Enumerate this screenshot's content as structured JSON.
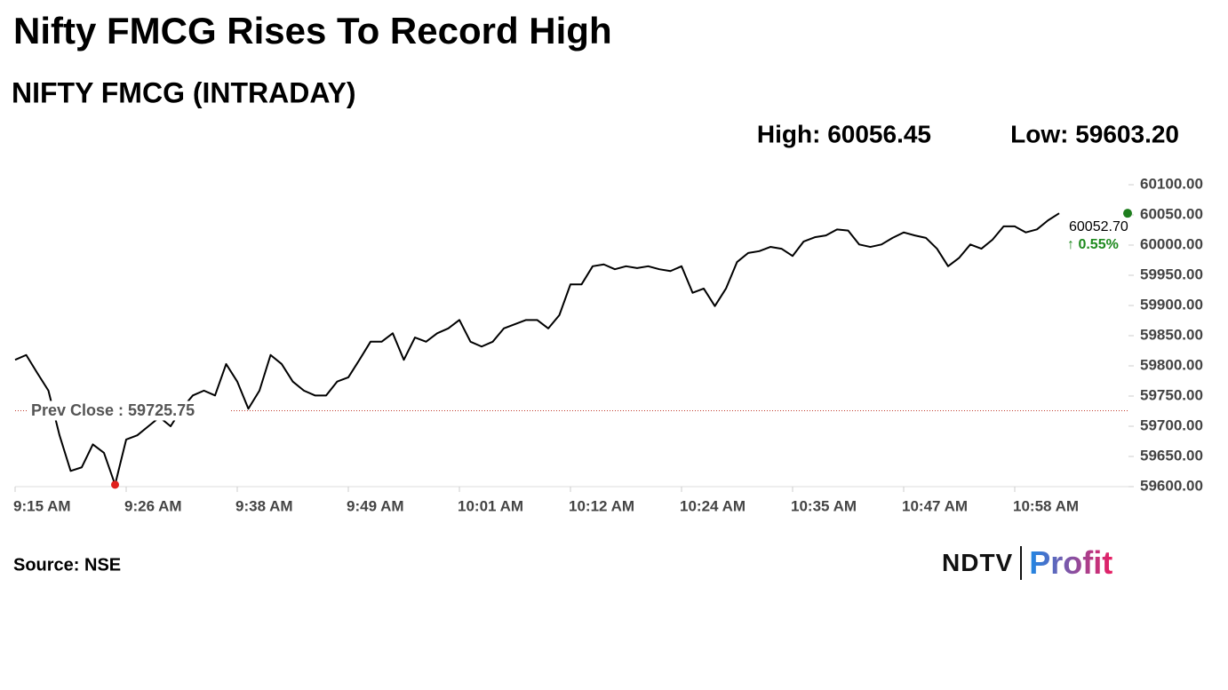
{
  "title": "Nifty FMCG Rises To Record High",
  "chart_data": {
    "type": "line",
    "subtitle": "NIFTY FMCG (INTRADAY)",
    "high_label": "High: 60056.45",
    "low_label": "Low: 59603.20",
    "categories": [
      "9:15 AM",
      null,
      null,
      null,
      null,
      null,
      null,
      null,
      null,
      null,
      "9:26 AM",
      null,
      null,
      null,
      null,
      null,
      null,
      null,
      null,
      null,
      "9:38 AM",
      null,
      null,
      null,
      null,
      null,
      null,
      null,
      null,
      null,
      "9:49 AM",
      null,
      null,
      null,
      null,
      null,
      null,
      null,
      null,
      null,
      "10:01 AM",
      null,
      null,
      null,
      null,
      null,
      null,
      null,
      null,
      null,
      "10:12 AM",
      null,
      null,
      null,
      null,
      null,
      null,
      null,
      null,
      null,
      "10:24 AM",
      null,
      null,
      null,
      null,
      null,
      null,
      null,
      null,
      null,
      "10:35 AM",
      null,
      null,
      null,
      null,
      null,
      null,
      null,
      null,
      null,
      "10:47 AM",
      null,
      null,
      null,
      null,
      null,
      null,
      null,
      null,
      null,
      "10:58 AM",
      null,
      null,
      null,
      null,
      null,
      null,
      null,
      null,
      null,
      null
    ],
    "values": [
      59810,
      59818,
      59788,
      59759,
      59685,
      59626,
      59632,
      59670,
      59656,
      59603.2,
      59678,
      59685,
      59700,
      59715,
      59700,
      59729,
      59751,
      59759,
      59751,
      59803,
      59774,
      59729,
      59759,
      59818,
      59803,
      59774,
      59759,
      59751,
      59751,
      59774,
      59781,
      59810,
      59840,
      59840,
      59854,
      59810,
      59847,
      59840,
      59854,
      59862,
      59876,
      59840,
      59832,
      59840,
      59862,
      59869,
      59876,
      59876,
      59862,
      59884,
      59935,
      59935,
      59965,
      59968,
      59960,
      59965,
      59962,
      59965,
      59960,
      59957,
      59965,
      59921,
      59928,
      59899,
      59928,
      59972,
      59987,
      59990,
      59997,
      59994,
      59982,
      60006,
      60013,
      60016,
      60026,
      60024,
      60001,
      59997,
      60001,
      60012,
      60021,
      60016,
      60012,
      59994,
      59965,
      59979,
      60001,
      59994,
      60009,
      60031,
      60031,
      60021,
      60026,
      60041,
      60052.7,
      null,
      null,
      null,
      null,
      null,
      null
    ],
    "value_labels": [
      null,
      null,
      null,
      null,
      null,
      null,
      null,
      null,
      null,
      null,
      null,
      null,
      null,
      null,
      null,
      null,
      null,
      null,
      null,
      null,
      null,
      null,
      null,
      null,
      null,
      null,
      null,
      null,
      null,
      null,
      null,
      null,
      null,
      null,
      null,
      null,
      null,
      null,
      null,
      null,
      null,
      null,
      null,
      null,
      null,
      null,
      null,
      null,
      null,
      null,
      null,
      null,
      null,
      null,
      null,
      null,
      null,
      null,
      null,
      null,
      null,
      null,
      null,
      null,
      null,
      null,
      null,
      null,
      null,
      null,
      null,
      null,
      null,
      null,
      null,
      null,
      null,
      null,
      null,
      null,
      null,
      null,
      null,
      null,
      null,
      null,
      null,
      null,
      null,
      null,
      null,
      null,
      null,
      null,
      "60052.70",
      null,
      null,
      null,
      null,
      null,
      null
    ],
    "change_label": "↑ 0.55%",
    "color": "#000000",
    "low_marker_color": "#e0201c",
    "last_marker_color": "#1e7e1e",
    "change_color": "#1e8a1e",
    "reference_line": {
      "value": 59725.75,
      "label": "Prev Close : 59725.75",
      "color": "#c0392b"
    },
    "ylim": [
      59600,
      60100
    ],
    "yticks": [
      {
        "value": 59600,
        "label": "59600.00"
      },
      {
        "value": 59650,
        "label": "59650.00"
      },
      {
        "value": 59700,
        "label": "59700.00"
      },
      {
        "value": 59750,
        "label": "59750.00"
      },
      {
        "value": 59800,
        "label": "59800.00"
      },
      {
        "value": 59850,
        "label": "59850.00"
      },
      {
        "value": 59900,
        "label": "59900.00"
      },
      {
        "value": 59950,
        "label": "59950.00"
      },
      {
        "value": 60000,
        "label": "60000.00"
      },
      {
        "value": 60050,
        "label": "60050.00"
      },
      {
        "value": 60100,
        "label": "60100.00"
      }
    ],
    "grid": false
  },
  "source": "Source: NSE",
  "logo": {
    "left": "NDTV",
    "right": "Profit"
  }
}
